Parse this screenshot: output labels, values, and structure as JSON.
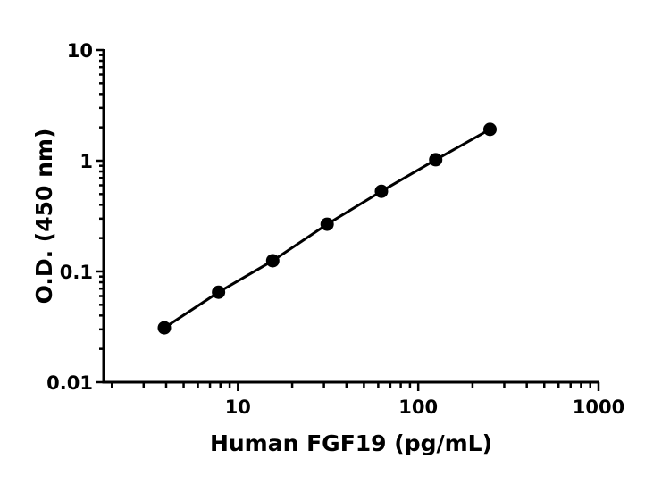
{
  "chart_data": {
    "type": "line",
    "title": "",
    "xlabel": "Human FGF19 (pg/mL)",
    "ylabel": "O.D. (450 nm)",
    "x_scale": "log",
    "y_scale": "log",
    "xlim": [
      1.8,
      1000
    ],
    "ylim": [
      0.01,
      10
    ],
    "x_ticks": [
      10,
      100,
      1000
    ],
    "x_tick_labels": [
      "10",
      "100",
      "1000"
    ],
    "y_ticks": [
      0.01,
      0.1,
      1,
      10
    ],
    "y_tick_labels": [
      "0.01",
      "0.1",
      "1",
      "10"
    ],
    "grid": false,
    "series": [
      {
        "x": [
          3.91,
          7.81,
          15.6,
          31.25,
          62.5,
          125,
          250
        ],
        "y": [
          0.031,
          0.065,
          0.125,
          0.267,
          0.53,
          1.02,
          1.92
        ],
        "color": "#000000",
        "marker": "circle"
      }
    ]
  }
}
